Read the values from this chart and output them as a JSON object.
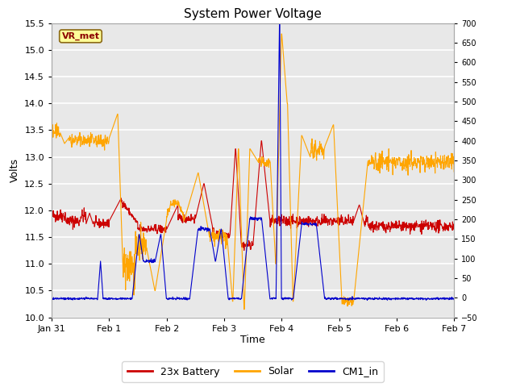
{
  "title": "System Power Voltage",
  "xlabel": "Time",
  "ylabel_left": "Volts",
  "ylim_left": [
    10.0,
    15.5
  ],
  "ylim_right": [
    -50,
    700
  ],
  "yticks_left": [
    10.0,
    10.5,
    11.0,
    11.5,
    12.0,
    12.5,
    13.0,
    13.5,
    14.0,
    14.5,
    15.0,
    15.5
  ],
  "yticks_right": [
    -50,
    0,
    50,
    100,
    150,
    200,
    250,
    300,
    350,
    400,
    450,
    500,
    550,
    600,
    650,
    700
  ],
  "xtick_labels": [
    "Jan 31",
    "Feb 1",
    "Feb 2",
    "Feb 3",
    "Feb 4",
    "Feb 5",
    "Feb 6",
    "Feb 7"
  ],
  "annotation_text": "VR_met",
  "annotation_color": "#8B0000",
  "annotation_bg": "#FFFF99",
  "annotation_border": "#8B6914",
  "color_battery": "#CC0000",
  "color_solar": "#FFA500",
  "color_cm1": "#0000CC",
  "legend_labels": [
    "23x Battery",
    "Solar",
    "CM1_in"
  ],
  "bg_color": "#E8E8E8",
  "grid_color": "#FFFFFF"
}
